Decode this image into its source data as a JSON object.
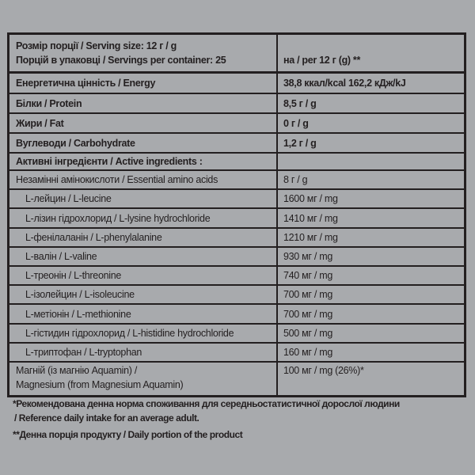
{
  "table": {
    "header": {
      "left": [
        "Розмір порції / Serving size: 12 г / g",
        "Порцій в упаковці / Servings per container: 25"
      ],
      "right": "на / per 12 г (g) **"
    },
    "nutrients": [
      [
        "Енергетична цінність / Energy",
        "38,8 ккал/kcal 162,2 кДж/kJ"
      ],
      [
        "Білки / Protein",
        "8,5 г / g"
      ],
      [
        "Жири / Fat",
        "0 г / g"
      ],
      [
        "Вуглеводи / Carbohydrate",
        "1,2 г / g"
      ]
    ],
    "active_heading": "Активні інгредієнти / Active ingredients :",
    "ingredients": [
      [
        "Незамінні амінокислоти / Essential amino acids",
        "8 г / g"
      ],
      [
        "L-лейцин / L-leucine",
        "1600 мг / mg"
      ],
      [
        "L-лізин гідрохлорид / L-lysine hydrochloride",
        "1410 мг / mg"
      ],
      [
        "L-фенілаланін / L-phenylalanine",
        "1210 мг / mg"
      ],
      [
        "L-валін / L-valine",
        "930 мг / mg"
      ],
      [
        "L-треонін / L-threonine",
        "740 мг / mg"
      ],
      [
        "L-ізолейцин / L-isoleucine",
        "700 мг / mg"
      ],
      [
        "L-метіонін / L-methionine",
        "700 мг / mg"
      ],
      [
        "L-гістидин гідрохлорид / L-histidine hydrochloride",
        "500 мг / mg"
      ],
      [
        "L-триптофан / L-tryptophan",
        "160 мг / mg"
      ]
    ],
    "mineral": {
      "left": [
        "Магній (із магнію Aquamin) /",
        "Magnesium (from Magnesium Aquamin)"
      ],
      "right": "100 мг / mg (26%)*"
    }
  },
  "footnotes": [
    "*Рекомендована денна норма споживання для середньостатистичної дорослої людини",
    "/ Reference daily intake for an average adult.",
    "**Денна порція продукту / Daily portion of the product"
  ]
}
